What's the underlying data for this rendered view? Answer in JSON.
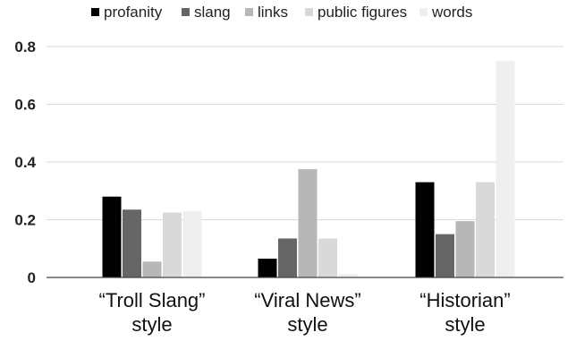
{
  "chart_data": {
    "type": "bar",
    "categories": [
      [
        "“Troll Slang”",
        "style"
      ],
      [
        "“Viral News”",
        "style"
      ],
      [
        "“Historian”",
        "style"
      ]
    ],
    "series": [
      {
        "name": "profanity",
        "color": "#000000",
        "values": [
          0.28,
          0.065,
          0.33
        ]
      },
      {
        "name": "slang",
        "color": "#666666",
        "values": [
          0.235,
          0.135,
          0.15
        ]
      },
      {
        "name": "links",
        "color": "#b7b7b7",
        "values": [
          0.055,
          0.375,
          0.195
        ]
      },
      {
        "name": "public figures",
        "color": "#d9d9d9",
        "values": [
          0.225,
          0.135,
          0.33
        ]
      },
      {
        "name": "words",
        "color": "#efefef",
        "values": [
          0.23,
          0.012,
          0.75
        ]
      }
    ],
    "ylim": [
      0,
      0.8
    ],
    "yticks": [
      "0",
      "0.2",
      "0.4",
      "0.6",
      "0.8"
    ],
    "ytick_values": [
      0,
      0.2,
      0.4,
      0.6,
      0.8
    ],
    "grid": true,
    "legend_position": "top"
  }
}
